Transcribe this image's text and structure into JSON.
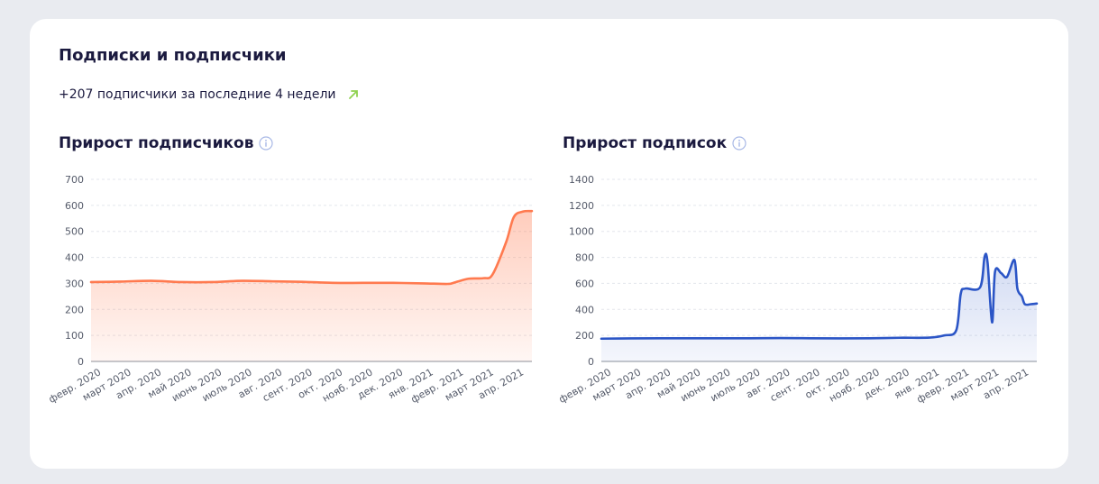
{
  "header": {
    "title": "Подписки и подписчики",
    "summary": "+207 подписчики за последние 4 недели",
    "summary_icon": "arrow-up-right-icon",
    "accent_color": "#8fd14f"
  },
  "chart_data": [
    {
      "type": "area",
      "title": "Прирост подписчиков",
      "xlabel": "",
      "ylabel": "",
      "ylim": [
        0,
        700
      ],
      "yticks": [
        0,
        100,
        200,
        300,
        400,
        500,
        600,
        700
      ],
      "grid": true,
      "categories": [
        "февр. 2020",
        "март 2020",
        "апр. 2020",
        "май 2020",
        "июнь 2020",
        "июль 2020",
        "авг. 2020",
        "сент. 2020",
        "окт. 2020",
        "нояб. 2020",
        "дек. 2020",
        "янв. 2021",
        "февр. 2021",
        "март 2021",
        "апр. 2021"
      ],
      "color": "#ff7a4f",
      "series": [
        {
          "x": [
            0,
            1,
            2,
            3,
            4,
            5,
            6,
            7,
            8,
            9,
            10,
            11,
            11.8,
            12,
            12.5,
            13,
            13.3,
            13.75,
            14,
            14.3,
            14.6
          ],
          "values": [
            305,
            307,
            310,
            305,
            305,
            310,
            308,
            306,
            302,
            302,
            302,
            300,
            298,
            302,
            318,
            320,
            335,
            460,
            555,
            576,
            578
          ]
        }
      ]
    },
    {
      "type": "line",
      "title": "Прирост подписок",
      "xlabel": "",
      "ylabel": "",
      "ylim": [
        0,
        1400
      ],
      "yticks": [
        0,
        200,
        400,
        600,
        800,
        1000,
        1200,
        1400
      ],
      "grid": true,
      "categories": [
        "февр. 2020",
        "март 2020",
        "апр. 2020",
        "май 2020",
        "июнь 2020",
        "июль 2020",
        "авг. 2020",
        "сент. 2020",
        "окт. 2020",
        "нояб. 2020",
        "дек. 2020",
        "янв. 2021",
        "февр. 2021",
        "март 2021",
        "апр. 2021"
      ],
      "color": "#2b55c6",
      "series": [
        {
          "x": [
            0,
            1,
            2,
            3,
            4,
            5,
            6,
            7,
            8,
            9,
            10,
            11,
            11.5,
            11.9,
            12.05,
            12.2,
            12.7,
            12.85,
            12.95,
            13.1,
            13.2,
            13.4,
            13.6,
            13.85,
            13.95,
            14.1,
            14.2,
            14.4,
            14.6
          ],
          "values": [
            175,
            177,
            178,
            178,
            178,
            178,
            180,
            178,
            177,
            178,
            182,
            183,
            200,
            240,
            520,
            560,
            570,
            805,
            760,
            300,
            690,
            680,
            650,
            780,
            560,
            500,
            440,
            440,
            445
          ]
        }
      ]
    }
  ]
}
